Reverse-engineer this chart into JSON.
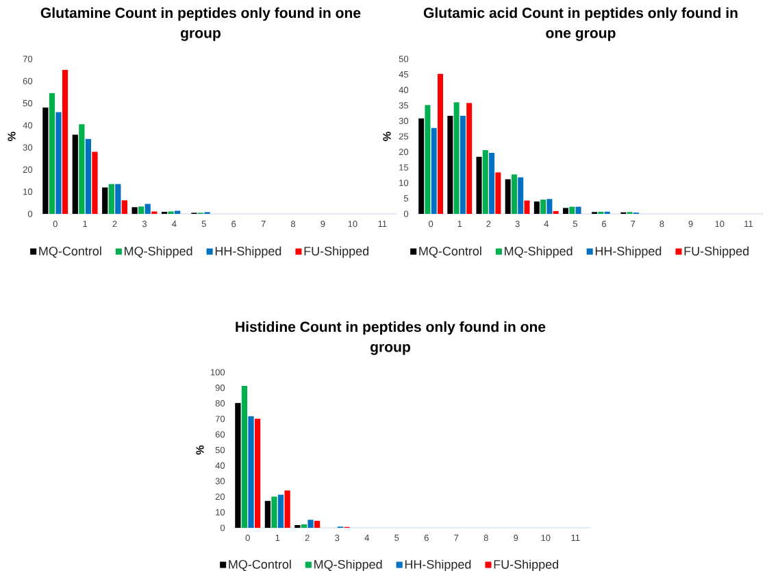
{
  "chart_data": [
    {
      "type": "bar",
      "title": "Glutamine Count in peptides only found in one group",
      "ylabel": "%",
      "categories": [
        "0",
        "1",
        "2",
        "3",
        "4",
        "5",
        "6",
        "7",
        "8",
        "9",
        "10",
        "11"
      ],
      "series": [
        {
          "name": "MQ-Control",
          "color": "#000000",
          "values": [
            48.1,
            35.8,
            11.9,
            3.0,
            0.9,
            0.5,
            0,
            0,
            0,
            0,
            0,
            0
          ]
        },
        {
          "name": "MQ-Shipped",
          "color": "#00b050",
          "values": [
            54.6,
            40.5,
            13.5,
            3.3,
            1.1,
            0.5,
            0,
            0,
            0,
            0,
            0,
            0
          ]
        },
        {
          "name": "HH-Shipped",
          "color": "#0070c0",
          "values": [
            46.0,
            33.8,
            13.5,
            4.5,
            1.4,
            0.8,
            0,
            0,
            0,
            0,
            0,
            0
          ]
        },
        {
          "name": "FU-Shipped",
          "color": "#ff0000",
          "values": [
            65.1,
            28.0,
            6.1,
            1.1,
            0,
            0,
            0,
            0,
            0,
            0,
            0,
            0
          ]
        }
      ],
      "ylim": [
        0,
        70
      ],
      "yticks": [
        0,
        10,
        20,
        30,
        40,
        50,
        60,
        70
      ],
      "legend": "bottom"
    },
    {
      "type": "bar",
      "title": "Glutamic acid Count in peptides only found in one group",
      "ylabel": "%",
      "categories": [
        "0",
        "1",
        "2",
        "3",
        "4",
        "5",
        "6",
        "7",
        "8",
        "9",
        "10",
        "11"
      ],
      "series": [
        {
          "name": "MQ-Control",
          "color": "#000000",
          "values": [
            30.8,
            31.7,
            18.4,
            11.2,
            4.0,
            1.9,
            0.6,
            0.5,
            0,
            0,
            0,
            0
          ]
        },
        {
          "name": "MQ-Shipped",
          "color": "#00b050",
          "values": [
            35.1,
            36.0,
            20.6,
            12.7,
            4.6,
            2.3,
            0.7,
            0.6,
            0,
            0,
            0,
            0
          ]
        },
        {
          "name": "HH-Shipped",
          "color": "#0070c0",
          "values": [
            27.7,
            31.7,
            19.7,
            11.8,
            4.8,
            2.3,
            0.7,
            0.4,
            0,
            0,
            0,
            0
          ]
        },
        {
          "name": "FU-Shipped",
          "color": "#ff0000",
          "values": [
            45.2,
            35.8,
            13.4,
            4.3,
            0.9,
            0,
            0,
            0,
            0,
            0,
            0,
            0
          ]
        }
      ],
      "ylim": [
        0,
        50
      ],
      "yticks": [
        0,
        5,
        10,
        15,
        20,
        25,
        30,
        35,
        40,
        45,
        50
      ],
      "legend": "bottom"
    },
    {
      "type": "bar",
      "title": "Histidine Count in peptides only found in one group",
      "ylabel": "%",
      "categories": [
        "0",
        "1",
        "2",
        "3",
        "4",
        "5",
        "6",
        "7",
        "8",
        "9",
        "10",
        "11"
      ],
      "series": [
        {
          "name": "MQ-Control",
          "color": "#000000",
          "values": [
            80.3,
            17.3,
            1.8,
            0,
            0,
            0,
            0,
            0,
            0,
            0,
            0,
            0
          ]
        },
        {
          "name": "MQ-Shipped",
          "color": "#00b050",
          "values": [
            91.2,
            20.0,
            2.2,
            0,
            0,
            0,
            0,
            0,
            0,
            0,
            0,
            0
          ]
        },
        {
          "name": "HH-Shipped",
          "color": "#0070c0",
          "values": [
            71.7,
            21.3,
            5.2,
            0.8,
            0,
            0,
            0,
            0,
            0,
            0,
            0,
            0
          ]
        },
        {
          "name": "FU-Shipped",
          "color": "#ff0000",
          "values": [
            70.2,
            24.0,
            4.5,
            0.5,
            0,
            0,
            0,
            0,
            0,
            0,
            0,
            0
          ]
        }
      ],
      "ylim": [
        0,
        100
      ],
      "yticks": [
        0,
        10,
        20,
        30,
        40,
        50,
        60,
        70,
        80,
        90,
        100
      ],
      "legend": "bottom"
    }
  ]
}
